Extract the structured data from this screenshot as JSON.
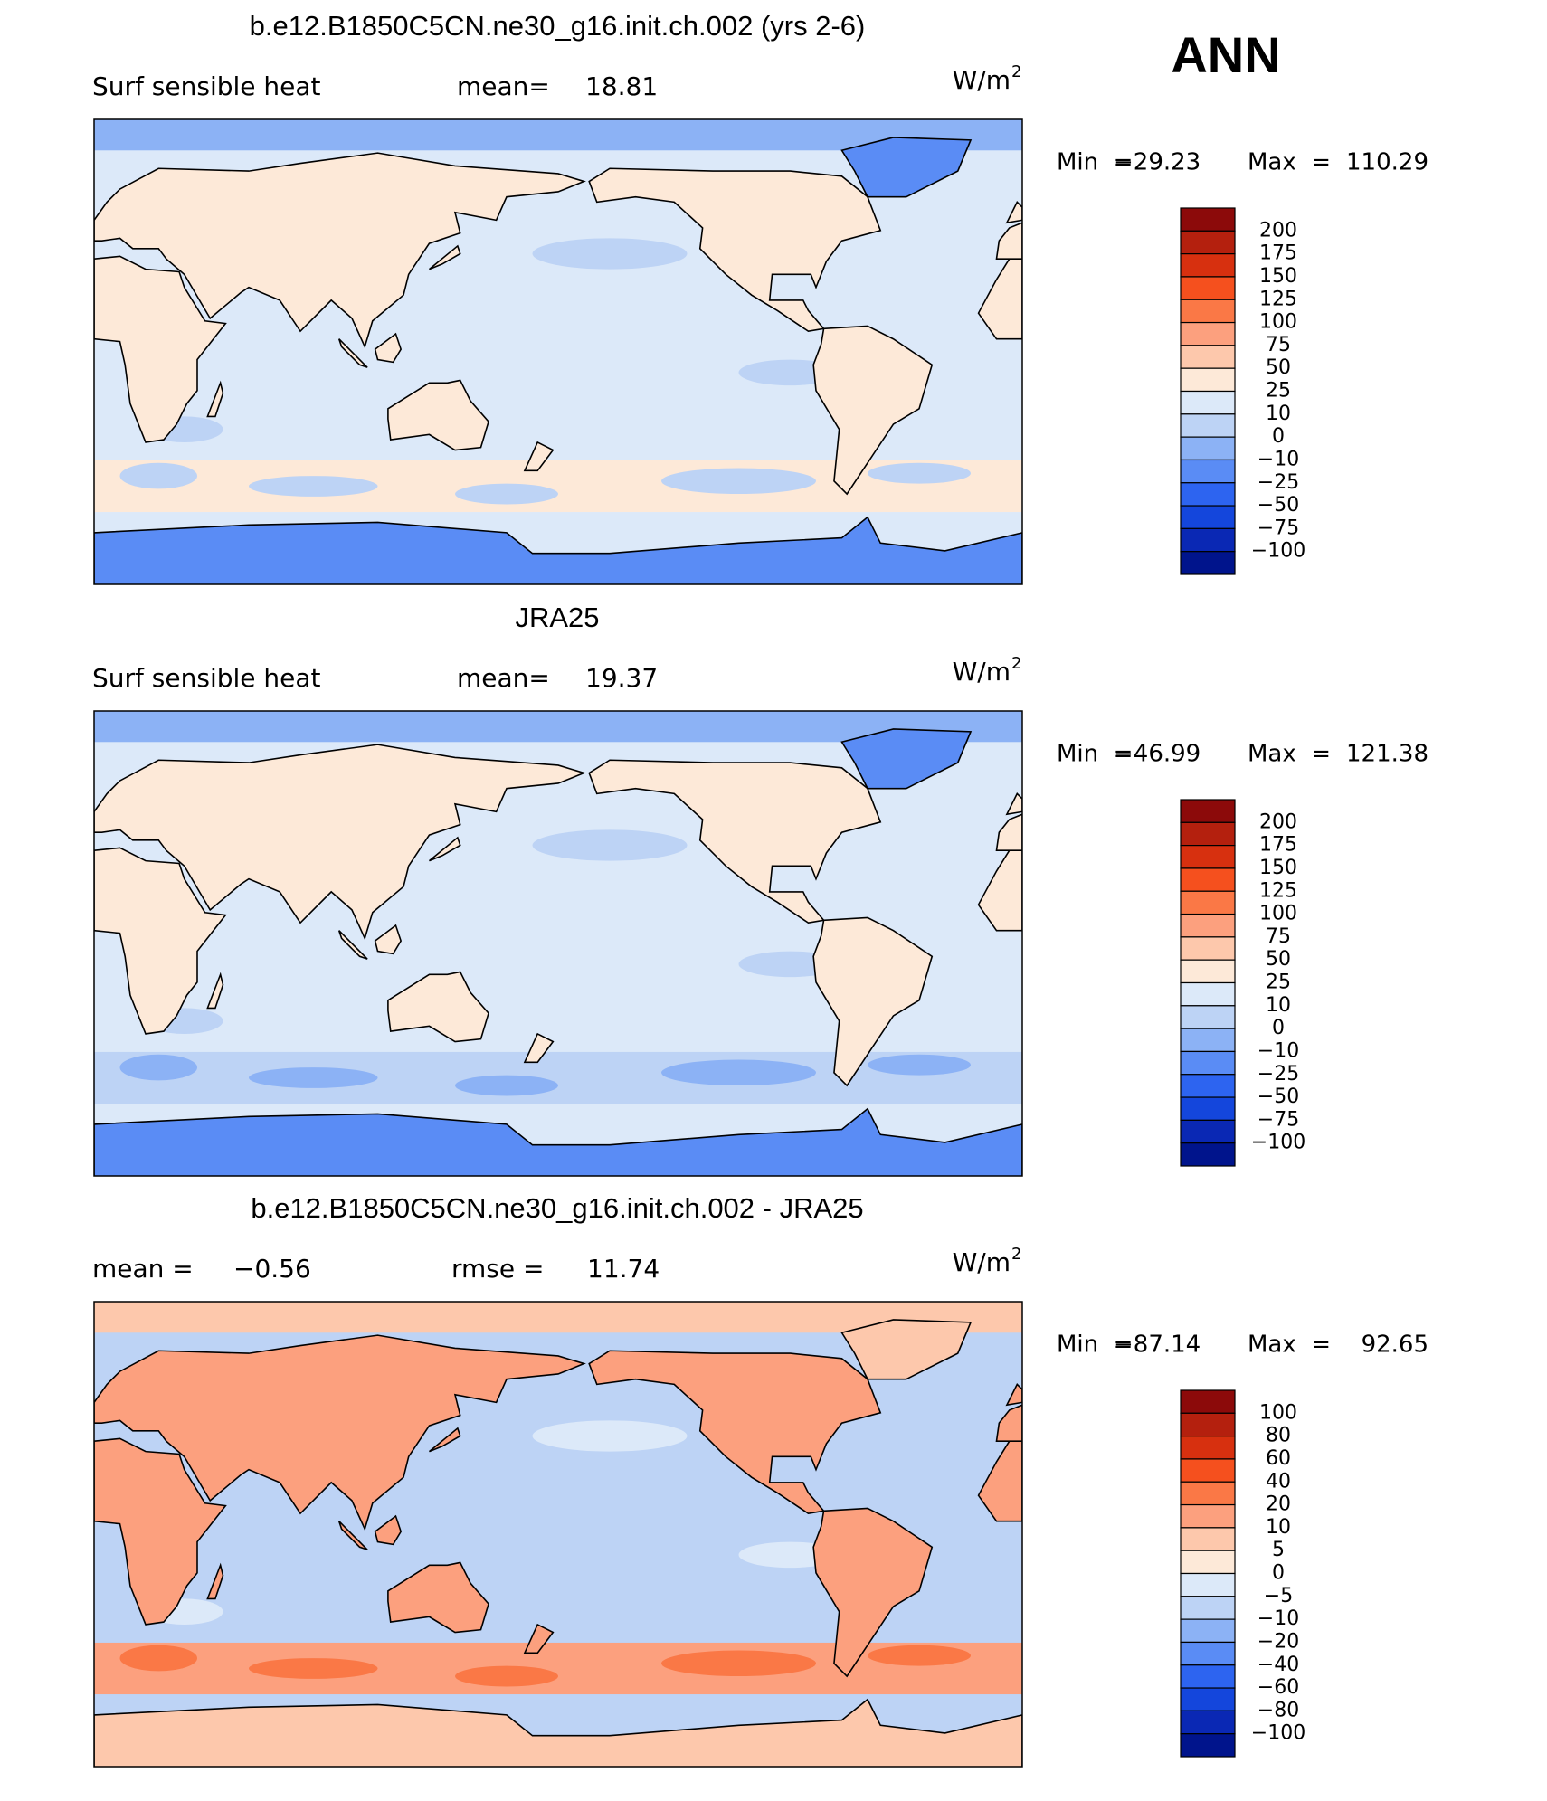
{
  "header": {
    "season": "ANN"
  },
  "panels": [
    {
      "title": "b.e12.B1850C5CN.ne30_g16.init.ch.002 (yrs 2-6)",
      "left_label": "Surf sensible heat",
      "stats": [
        {
          "label": "mean=",
          "value": "18.81"
        }
      ],
      "units": "W/m",
      "units_exponent": "2",
      "min_label": "Min  =",
      "min": "−29.23",
      "max_label": "Max  =",
      "max": "110.29",
      "colorbar": {
        "labels": [
          "200",
          "175",
          "150",
          "125",
          "100",
          "75",
          "50",
          "25",
          "10",
          "0",
          "−10",
          "−25",
          "−50",
          "−75",
          "−100"
        ],
        "colors": [
          "#8c0a0a",
          "#b4200e",
          "#d7300f",
          "#f5501e",
          "#fa7846",
          "#fca07e",
          "#fdc8ac",
          "#fde9d8",
          "#dce9f9",
          "#bdd3f5",
          "#8cb2f5",
          "#5a8cf5",
          "#2d64f0",
          "#1446dc",
          "#0a28b4",
          "#00148c"
        ]
      }
    },
    {
      "title": "JRA25",
      "left_label": "Surf sensible heat",
      "stats": [
        {
          "label": "mean=",
          "value": "19.37"
        }
      ],
      "units": "W/m",
      "units_exponent": "2",
      "min_label": "Min  =",
      "min": "−46.99",
      "max_label": "Max  =",
      "max": "121.38",
      "colorbar": {
        "labels": [
          "200",
          "175",
          "150",
          "125",
          "100",
          "75",
          "50",
          "25",
          "10",
          "0",
          "−10",
          "−25",
          "−50",
          "−75",
          "−100"
        ],
        "colors": [
          "#8c0a0a",
          "#b4200e",
          "#d7300f",
          "#f5501e",
          "#fa7846",
          "#fca07e",
          "#fdc8ac",
          "#fde9d8",
          "#dce9f9",
          "#bdd3f5",
          "#8cb2f5",
          "#5a8cf5",
          "#2d64f0",
          "#1446dc",
          "#0a28b4",
          "#00148c"
        ]
      }
    },
    {
      "title": "b.e12.B1850C5CN.ne30_g16.init.ch.002 - JRA25",
      "stats": [
        {
          "label": "mean =",
          "value": "−0.56"
        },
        {
          "label": "rmse =",
          "value": "11.74"
        }
      ],
      "units": "W/m",
      "units_exponent": "2",
      "min_label": "Min  =",
      "min": "−87.14",
      "max_label": "Max  =",
      "max": "92.65",
      "colorbar": {
        "labels": [
          "100",
          "80",
          "60",
          "40",
          "20",
          "10",
          "5",
          "0",
          "−5",
          "−10",
          "−20",
          "−40",
          "−60",
          "−80",
          "−100"
        ],
        "colors": [
          "#8c0a0a",
          "#b4200e",
          "#d7300f",
          "#f5501e",
          "#fa7846",
          "#fca07e",
          "#fdc8ac",
          "#fde9d8",
          "#dce9f9",
          "#bdd3f5",
          "#8cb2f5",
          "#5a8cf5",
          "#2d64f0",
          "#1446dc",
          "#0a28b4",
          "#00148c"
        ]
      }
    }
  ]
}
